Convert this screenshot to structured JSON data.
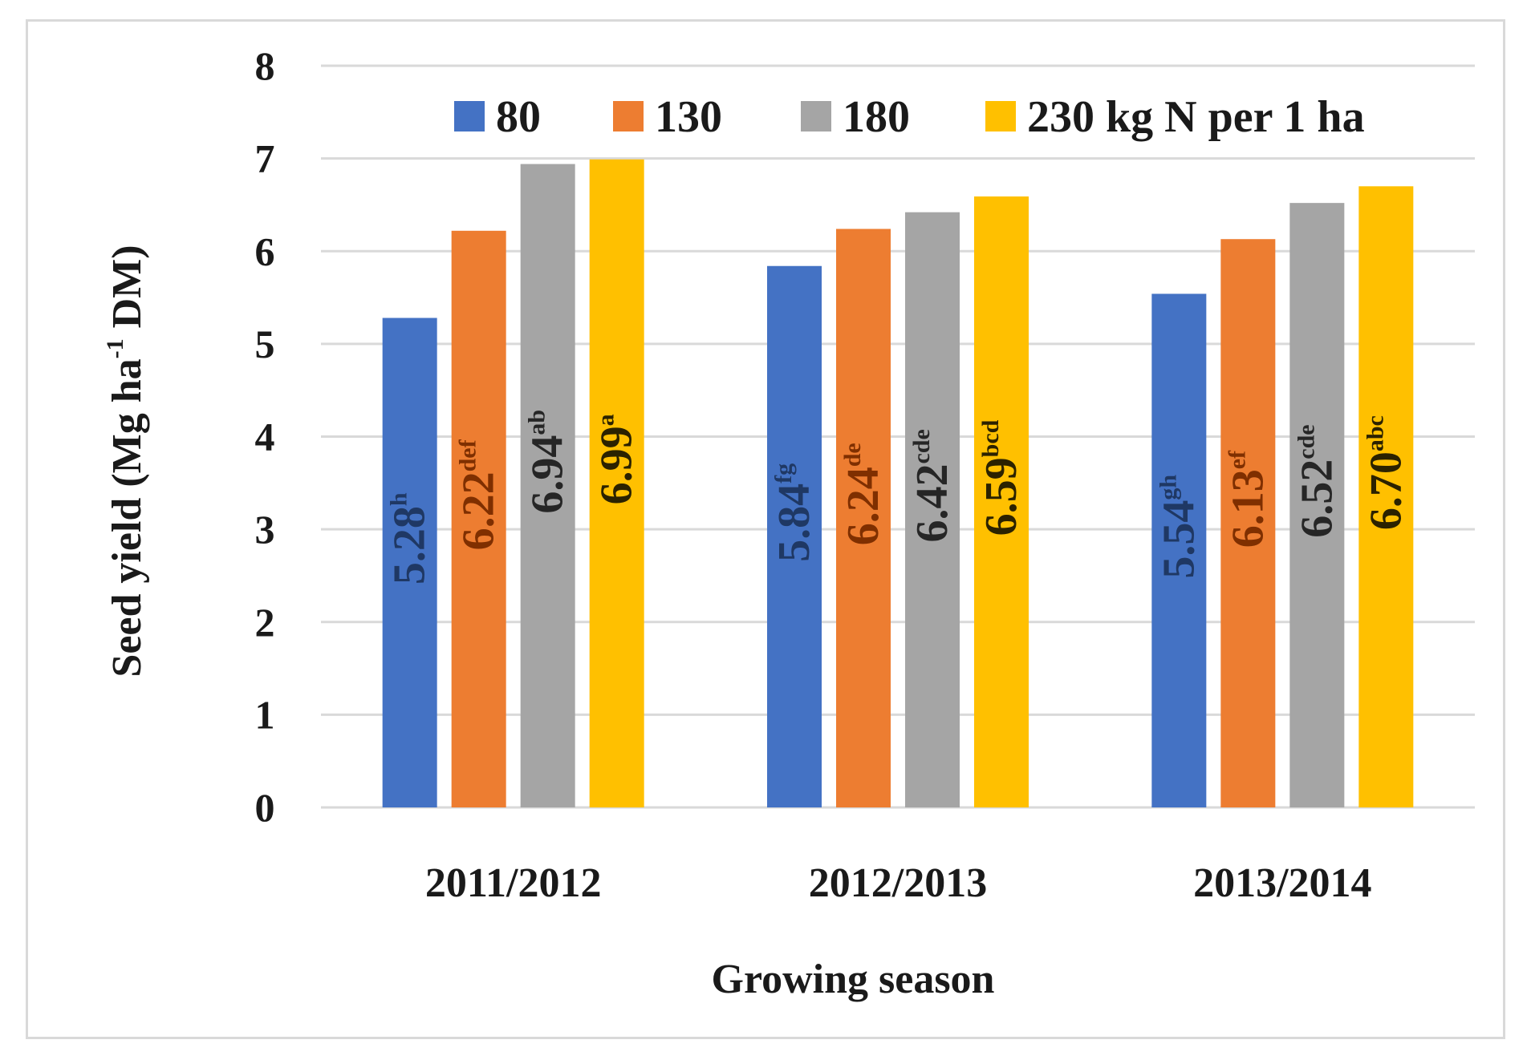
{
  "chart_data": {
    "type": "bar",
    "title": "",
    "xlabel": "Growing season",
    "ylabel_main": "Seed yield (Mg ha",
    "ylabel_sup": "-1",
    "ylabel_end": " DM)",
    "ylim": [
      0,
      8
    ],
    "yticks": [
      "0",
      "1",
      "2",
      "3",
      "4",
      "5",
      "6",
      "7",
      "8"
    ],
    "grid": true,
    "legend_position": "top",
    "categories": [
      "2011/2012",
      "2012/2013",
      "2013/2014"
    ],
    "series": [
      {
        "name": "80",
        "color": "#4472c4",
        "label_color": "#1f3864",
        "values": [
          5.28,
          5.84,
          5.54
        ],
        "labels": [
          "5.28",
          "5.84",
          "5.54"
        ],
        "letters": [
          "h",
          "fg",
          "gh"
        ]
      },
      {
        "name": "130",
        "color": "#ed7d31",
        "label_color": "#7f2f00",
        "values": [
          6.22,
          6.24,
          6.13
        ],
        "labels": [
          "6.22",
          "6.24",
          "6.13"
        ],
        "letters": [
          "def",
          "de",
          "ef"
        ]
      },
      {
        "name": "180",
        "color": "#a5a5a5",
        "label_color": "#262626",
        "values": [
          6.94,
          6.42,
          6.52
        ],
        "labels": [
          "6.94",
          "6.42",
          "6.52"
        ],
        "letters": [
          "ab",
          "cde",
          "cde"
        ]
      },
      {
        "name": "230 kg N per 1 ha",
        "color": "#ffc000",
        "label_color": "#2b2200",
        "values": [
          6.99,
          6.59,
          6.7
        ],
        "labels": [
          "6.99",
          "6.59",
          "6.70"
        ],
        "letters": [
          "a",
          "bcd",
          "abc"
        ]
      }
    ]
  }
}
